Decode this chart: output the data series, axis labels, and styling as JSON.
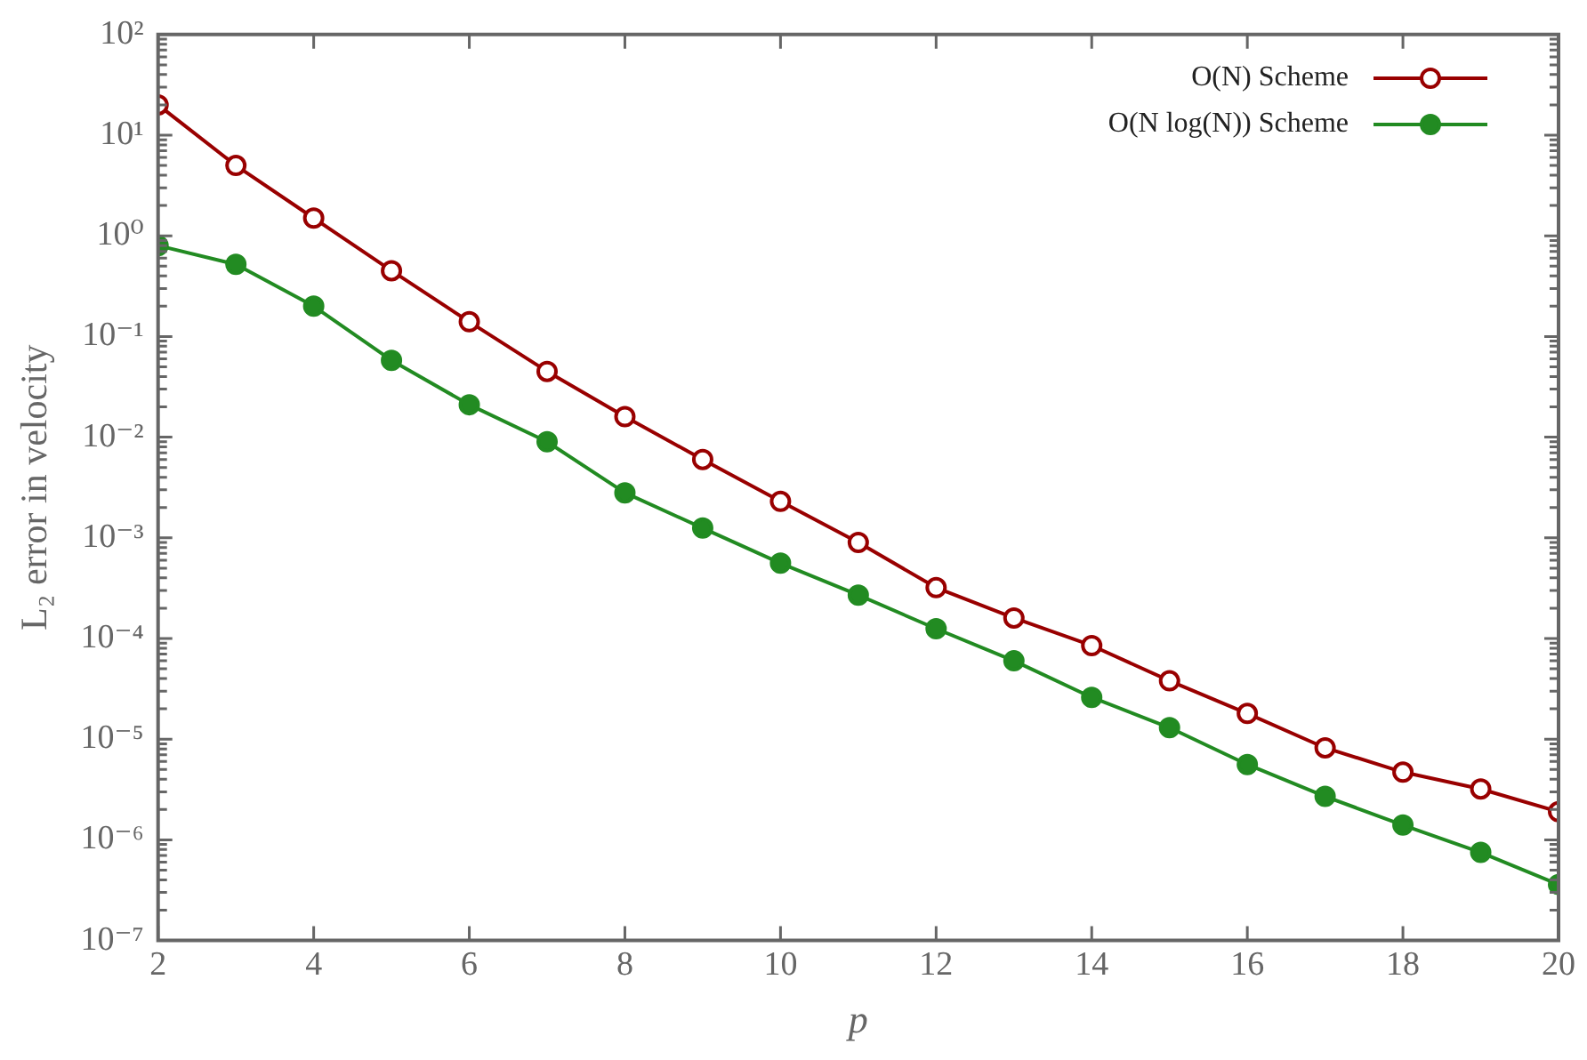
{
  "chart_data": {
    "type": "line",
    "xlabel": "p",
    "ylabel": "L₂ error in velocity",
    "x": [
      2,
      3,
      4,
      5,
      6,
      7,
      8,
      9,
      10,
      11,
      12,
      13,
      14,
      15,
      16,
      17,
      18,
      19,
      20
    ],
    "series": [
      {
        "name": "O(N) Scheme",
        "color": "#990000",
        "values": [
          20,
          5.0,
          1.5,
          0.45,
          0.14,
          0.045,
          0.016,
          0.006,
          0.0023,
          0.0009,
          0.00032,
          0.00016,
          8.5e-05,
          3.8e-05,
          1.8e-05,
          8.2e-06,
          4.7e-06,
          3.2e-06,
          1.9e-06
        ]
      },
      {
        "name": "O(N log(N)) Scheme",
        "color": "#228b22",
        "values": [
          0.8,
          0.52,
          0.2,
          0.058,
          0.021,
          0.009,
          0.0028,
          0.00125,
          0.00056,
          0.00027,
          0.000125,
          6e-05,
          2.6e-05,
          1.3e-05,
          5.6e-06,
          2.7e-06,
          1.4e-06,
          7.5e-07,
          3.6e-07
        ]
      }
    ],
    "log": "y",
    "xlim": [
      2,
      20
    ],
    "ylim": [
      1e-07,
      100
    ],
    "xticks": [
      2,
      4,
      6,
      8,
      10,
      12,
      14,
      16,
      18,
      20
    ],
    "yticks": [
      {
        "value": 1e-07,
        "label": "10⁻⁷"
      },
      {
        "value": 1e-06,
        "label": "10⁻⁶"
      },
      {
        "value": 1e-05,
        "label": "10⁻⁵"
      },
      {
        "value": 0.0001,
        "label": "10⁻⁴"
      },
      {
        "value": 0.001,
        "label": "10⁻³"
      },
      {
        "value": 0.01,
        "label": "10⁻²"
      },
      {
        "value": 0.1,
        "label": "10⁻¹"
      },
      {
        "value": 1,
        "label": "10⁰"
      },
      {
        "value": 10,
        "label": "10¹"
      },
      {
        "value": 100,
        "label": "10²"
      }
    ],
    "grid": false,
    "legend": "top right",
    "marker": "circle",
    "line_style": "solid"
  }
}
